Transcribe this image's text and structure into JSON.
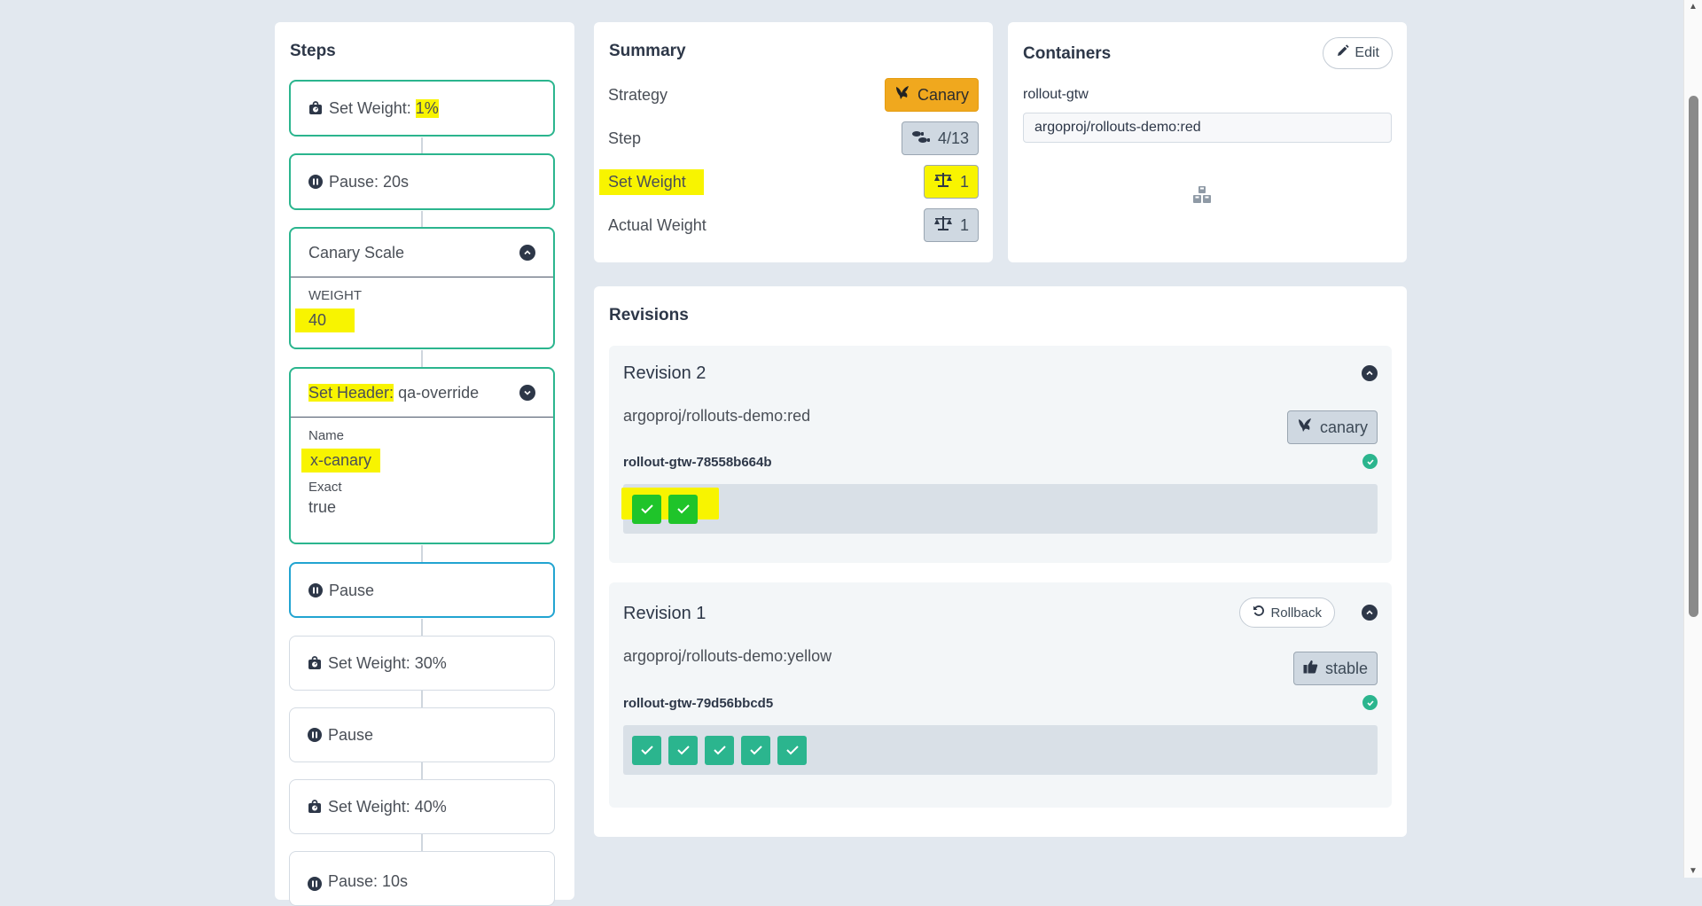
{
  "steps": {
    "title": "Steps",
    "items": [
      {
        "type": "weight",
        "label_prefix": "Set Weight: ",
        "label_value": "1%"
      },
      {
        "type": "pause",
        "label": "Pause: 20s"
      },
      {
        "type": "canary-scale",
        "label": "Canary Scale",
        "field_label": "WEIGHT",
        "field_value": "40"
      },
      {
        "type": "set-header",
        "label_prefix": "Set Header:",
        "label_value": " qa-override",
        "name_label": "Name",
        "name_value": "x-canary",
        "match_label": "Exact",
        "match_value": "true"
      },
      {
        "type": "pause",
        "label": "Pause"
      },
      {
        "type": "weight",
        "label": "Set Weight: 30%"
      },
      {
        "type": "pause",
        "label": "Pause"
      },
      {
        "type": "weight",
        "label": "Set Weight: 40%"
      },
      {
        "type": "pause",
        "label": "Pause: 10s"
      }
    ]
  },
  "summary": {
    "title": "Summary",
    "rows": [
      {
        "label": "Strategy",
        "value": "Canary",
        "icon": "canary-bird-icon"
      },
      {
        "label": "Step",
        "value": "4/13",
        "icon": "shoe-prints-icon"
      },
      {
        "label": "Set Weight",
        "value": "1",
        "icon": "balance-scale-icon"
      },
      {
        "label": "Actual Weight",
        "value": "1",
        "icon": "balance-scale-icon"
      }
    ]
  },
  "containers": {
    "title": "Containers",
    "edit_label": "Edit",
    "container_name": "rollout-gtw",
    "image_value": "argoproj/rollouts-demo:red",
    "icon": "cubes-icon"
  },
  "revisions": {
    "title": "Revisions",
    "items": [
      {
        "title": "Revision 2",
        "image": "argoproj/rollouts-demo:red",
        "badge": "canary",
        "replicaset": "rollout-gtw-78558b664b",
        "pods": 2
      },
      {
        "title": "Revision 1",
        "rollback_label": "Rollback",
        "image": "argoproj/rollouts-demo:yellow",
        "badge": "stable",
        "replicaset": "rollout-gtw-79d56bbcd5",
        "pods": 5
      }
    ]
  },
  "colors": {
    "success": "#2bb58e",
    "active": "#22a4d1",
    "canary": "#f0a81e",
    "highlight": "#f8f400"
  }
}
